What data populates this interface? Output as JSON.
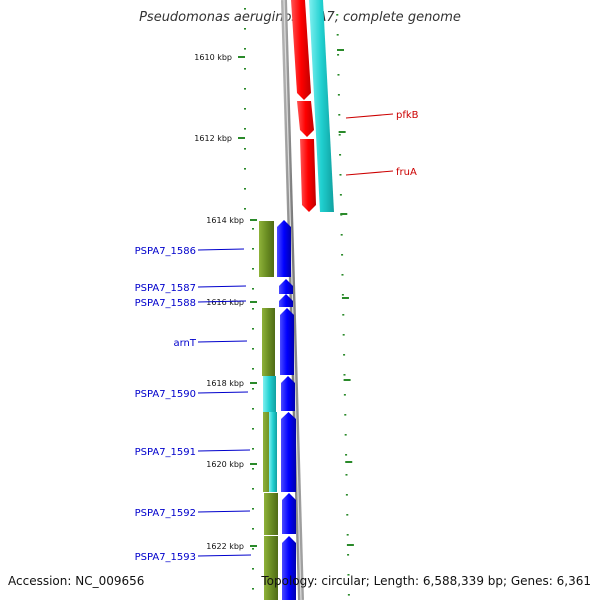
{
  "title": "Pseudomonas aeruginosa PA7, complete genome",
  "footer": {
    "accession": "Accession: NC_009656",
    "topology": "Topology: circular; Length: 6,588,339 bp; Genes: 6,361"
  },
  "colors": {
    "backbone": "#888888",
    "tick": "#2a8a2a",
    "forward_gene": "#0000ee",
    "reverse_gene": "#ee0000",
    "cds_olive": "#6b8e23",
    "cds_cyan": "#20d0d0",
    "label_blue": "#0000cc",
    "label_red": "#cc0000"
  },
  "ticks": [
    "1610 kbp",
    "1612 kbp",
    "1614 kbp",
    "1616 kbp",
    "1618 kbp",
    "1620 kbp",
    "1622 kbp"
  ],
  "genes_right": [
    {
      "label": "pfkB",
      "color": "#cc0000"
    },
    {
      "label": "fruA",
      "color": "#cc0000"
    }
  ],
  "genes_left": [
    {
      "label": "PSPA7_1586",
      "color": "#0000cc"
    },
    {
      "label": "PSPA7_1587",
      "color": "#0000cc"
    },
    {
      "label": "PSPA7_1588",
      "color": "#0000cc"
    },
    {
      "label": "arnT",
      "color": "#0000cc"
    },
    {
      "label": "PSPA7_1590",
      "color": "#0000cc"
    },
    {
      "label": "PSPA7_1591",
      "color": "#0000cc"
    },
    {
      "label": "PSPA7_1592",
      "color": "#0000cc"
    },
    {
      "label": "PSPA7_1593",
      "color": "#0000cc"
    }
  ]
}
